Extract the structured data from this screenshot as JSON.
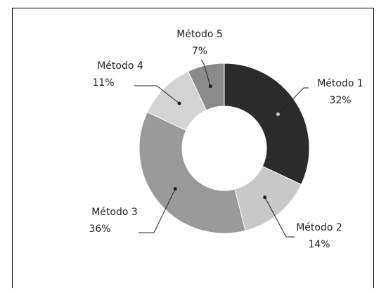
{
  "chart_data": {
    "type": "pie",
    "donut": true,
    "slices": [
      {
        "label": "Método 1",
        "value": 32,
        "value_label": "32%",
        "color": "#2b2b2b"
      },
      {
        "label": "Método 2",
        "value": 14,
        "value_label": "14%",
        "color": "#c8c8c8"
      },
      {
        "label": "Método 3",
        "value": 36,
        "value_label": "36%",
        "color": "#9a9a9a"
      },
      {
        "label": "Método 4",
        "value": 11,
        "value_label": "11%",
        "color": "#d3d3d3"
      },
      {
        "label": "Método 5",
        "value": 7,
        "value_label": "7%",
        "color": "#8a8a8a"
      }
    ]
  }
}
